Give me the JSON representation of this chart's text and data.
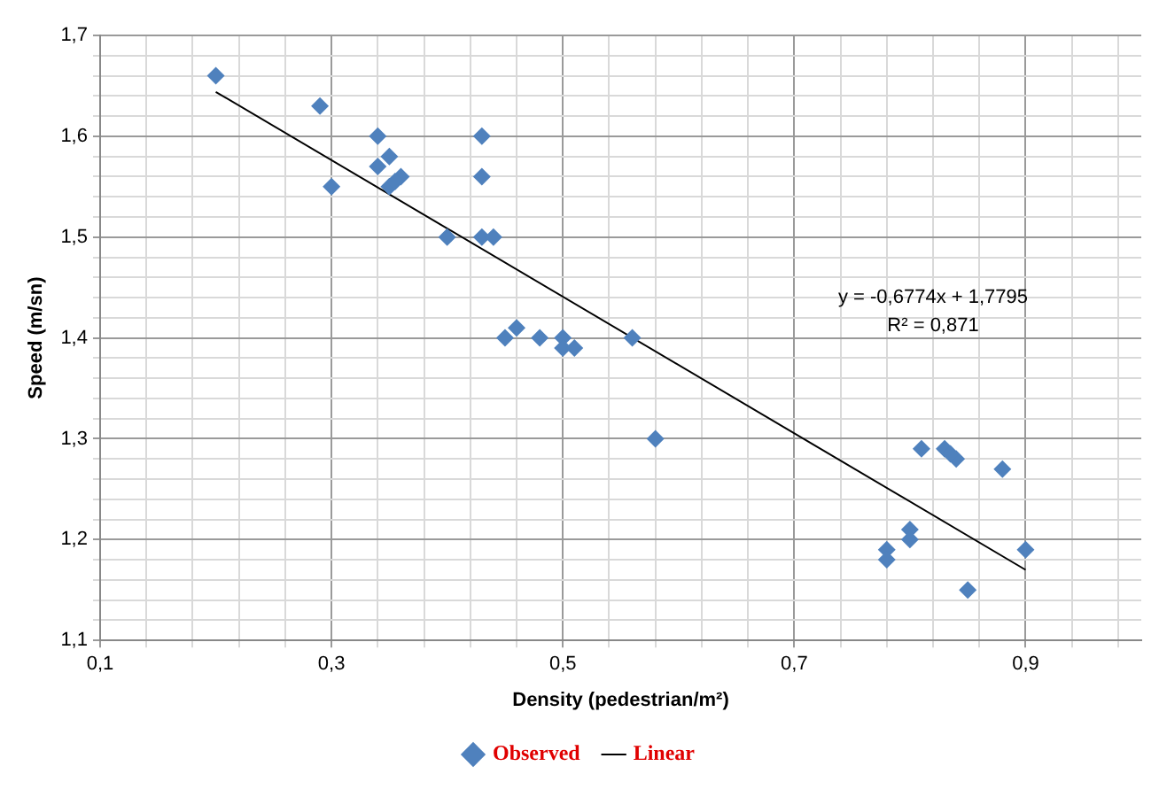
{
  "chart_data": {
    "type": "scatter",
    "xlabel": "Density (pedestrian/m²)",
    "ylabel": "Speed (m/sn)",
    "xlim": [
      0.1,
      1.0
    ],
    "ylim": [
      1.1,
      1.7
    ],
    "xticks": [
      {
        "value": 0.1,
        "label": "0,1"
      },
      {
        "value": 0.14,
        "label": null
      },
      {
        "value": 0.18,
        "label": null
      },
      {
        "value": 0.22,
        "label": null
      },
      {
        "value": 0.26,
        "label": null
      },
      {
        "value": 0.3,
        "label": "0,3"
      },
      {
        "value": 0.34,
        "label": null
      },
      {
        "value": 0.38,
        "label": null
      },
      {
        "value": 0.42,
        "label": null
      },
      {
        "value": 0.46,
        "label": null
      },
      {
        "value": 0.5,
        "label": "0,5"
      },
      {
        "value": 0.54,
        "label": null
      },
      {
        "value": 0.58,
        "label": null
      },
      {
        "value": 0.62,
        "label": null
      },
      {
        "value": 0.66,
        "label": null
      },
      {
        "value": 0.7,
        "label": "0,7"
      },
      {
        "value": 0.74,
        "label": null
      },
      {
        "value": 0.78,
        "label": null
      },
      {
        "value": 0.82,
        "label": null
      },
      {
        "value": 0.86,
        "label": null
      },
      {
        "value": 0.9,
        "label": "0,9"
      },
      {
        "value": 0.94,
        "label": null
      },
      {
        "value": 0.98,
        "label": null
      }
    ],
    "yticks": [
      {
        "value": 1.1,
        "label": "1,1"
      },
      {
        "value": 1.12,
        "label": null
      },
      {
        "value": 1.14,
        "label": null
      },
      {
        "value": 1.16,
        "label": null
      },
      {
        "value": 1.18,
        "label": null
      },
      {
        "value": 1.2,
        "label": "1,2"
      },
      {
        "value": 1.22,
        "label": null
      },
      {
        "value": 1.24,
        "label": null
      },
      {
        "value": 1.26,
        "label": null
      },
      {
        "value": 1.28,
        "label": null
      },
      {
        "value": 1.3,
        "label": "1,3"
      },
      {
        "value": 1.32,
        "label": null
      },
      {
        "value": 1.34,
        "label": null
      },
      {
        "value": 1.36,
        "label": null
      },
      {
        "value": 1.38,
        "label": null
      },
      {
        "value": 1.4,
        "label": "1,4"
      },
      {
        "value": 1.42,
        "label": null
      },
      {
        "value": 1.44,
        "label": null
      },
      {
        "value": 1.46,
        "label": null
      },
      {
        "value": 1.48,
        "label": null
      },
      {
        "value": 1.5,
        "label": "1,5"
      },
      {
        "value": 1.52,
        "label": null
      },
      {
        "value": 1.54,
        "label": null
      },
      {
        "value": 1.56,
        "label": null
      },
      {
        "value": 1.58,
        "label": null
      },
      {
        "value": 1.6,
        "label": "1,6"
      },
      {
        "value": 1.62,
        "label": null
      },
      {
        "value": 1.64,
        "label": null
      },
      {
        "value": 1.66,
        "label": null
      },
      {
        "value": 1.68,
        "label": null
      },
      {
        "value": 1.7,
        "label": "1,7"
      }
    ],
    "grid": true,
    "legend": "bottom",
    "series": [
      {
        "name": "Observed",
        "marker": "diamond",
        "color": "#4f81bd",
        "x": [
          0.2,
          0.29,
          0.3,
          0.34,
          0.34,
          0.35,
          0.35,
          0.36,
          0.355,
          0.4,
          0.43,
          0.43,
          0.43,
          0.44,
          0.45,
          0.46,
          0.48,
          0.5,
          0.5,
          0.51,
          0.56,
          0.58,
          0.78,
          0.78,
          0.8,
          0.8,
          0.81,
          0.83,
          0.84,
          0.835,
          0.85,
          0.88,
          0.9
        ],
        "values": [
          1.66,
          1.63,
          1.55,
          1.6,
          1.57,
          1.58,
          1.55,
          1.56,
          1.555,
          1.5,
          1.6,
          1.56,
          1.5,
          1.5,
          1.4,
          1.41,
          1.4,
          1.4,
          1.39,
          1.39,
          1.4,
          1.3,
          1.19,
          1.18,
          1.21,
          1.2,
          1.29,
          1.29,
          1.28,
          1.285,
          1.15,
          1.27,
          1.19
        ]
      },
      {
        "name": "Linear",
        "type": "line",
        "marker": "none",
        "color": "#000000",
        "x": [
          0.2,
          0.9
        ],
        "values": [
          1.644,
          1.17
        ]
      }
    ],
    "annotations": [
      "y = -0,6774x + 1,7795",
      "R² = 0,871"
    ]
  }
}
